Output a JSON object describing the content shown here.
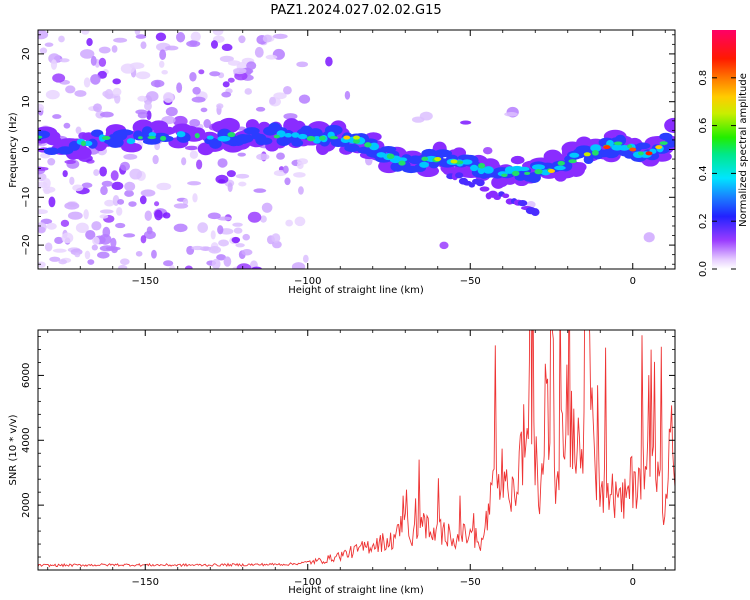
{
  "title": "PAZ1.2024.027.02.02.G15",
  "chart_data": [
    {
      "type": "heatmap",
      "xlabel": "Height of straight line (km)",
      "ylabel": "Frequency (Hz)",
      "xlim": [
        -183,
        13
      ],
      "ylim": [
        -25,
        25
      ],
      "xticks": [
        -150,
        -100,
        -50,
        0
      ],
      "yticks": [
        -20,
        -10,
        0,
        10,
        20
      ],
      "colorbar": {
        "label": "Normalized spectral amplitude",
        "range": [
          0,
          1
        ],
        "ticks": [
          0.0,
          0.2,
          0.4,
          0.6,
          0.8
        ],
        "colormap": "rainbow: white-lavender → purple → blue → cyan → green → yellow → orange → red → magenta"
      },
      "band_center": [
        {
          "x": -180,
          "y": 0.5
        },
        {
          "x": -160,
          "y": 2.5
        },
        {
          "x": -130,
          "y": 2.5
        },
        {
          "x": -110,
          "y": 3
        },
        {
          "x": -90,
          "y": 2.5
        },
        {
          "x": -80,
          "y": 0.5
        },
        {
          "x": -70,
          "y": -3
        },
        {
          "x": -60,
          "y": -2
        },
        {
          "x": -50,
          "y": -3
        },
        {
          "x": -40,
          "y": -5
        },
        {
          "x": -25,
          "y": -4
        },
        {
          "x": -15,
          "y": -1
        },
        {
          "x": -5,
          "y": 1
        },
        {
          "x": 5,
          "y": -1
        },
        {
          "x": 13,
          "y": 3
        }
      ]
    },
    {
      "type": "line",
      "xlabel": "Height of straight line (km)",
      "ylabel": "SNR (10 * v/v)",
      "xlim": [
        -183,
        13
      ],
      "ylim": [
        0,
        7400
      ],
      "xticks": [
        -150,
        -100,
        -50,
        0
      ],
      "yticks": [
        2000,
        4000,
        6000
      ],
      "series": [
        {
          "color": "#ee3333",
          "values": [
            {
              "x": -183,
              "y": 140
            },
            {
              "x": -170,
              "y": 150
            },
            {
              "x": -160,
              "y": 160
            },
            {
              "x": -140,
              "y": 150
            },
            {
              "x": -120,
              "y": 160
            },
            {
              "x": -105,
              "y": 180
            },
            {
              "x": -95,
              "y": 300
            },
            {
              "x": -90,
              "y": 450
            },
            {
              "x": -85,
              "y": 600
            },
            {
              "x": -80,
              "y": 800
            },
            {
              "x": -75,
              "y": 900
            },
            {
              "x": -72,
              "y": 1100
            },
            {
              "x": -70,
              "y": 2200
            },
            {
              "x": -68,
              "y": 900
            },
            {
              "x": -65,
              "y": 1700
            },
            {
              "x": -62,
              "y": 1000
            },
            {
              "x": -60,
              "y": 1200
            },
            {
              "x": -55,
              "y": 1000
            },
            {
              "x": -50,
              "y": 1100
            },
            {
              "x": -47,
              "y": 600
            },
            {
              "x": -45,
              "y": 1500
            },
            {
              "x": -41,
              "y": 3200
            },
            {
              "x": -38,
              "y": 1700
            },
            {
              "x": -35,
              "y": 3200
            },
            {
              "x": -31,
              "y": 5200
            },
            {
              "x": -29,
              "y": 2000
            },
            {
              "x": -26,
              "y": 4900
            },
            {
              "x": -24,
              "y": 3000
            },
            {
              "x": -20,
              "y": 4900
            },
            {
              "x": -16,
              "y": 3800
            },
            {
              "x": -12.5,
              "y": 7300
            },
            {
              "x": -11,
              "y": 2800
            },
            {
              "x": -7,
              "y": 2400
            },
            {
              "x": -3,
              "y": 2000
            },
            {
              "x": 0,
              "y": 2800
            },
            {
              "x": 5,
              "y": 3200
            },
            {
              "x": 8,
              "y": 3800
            },
            {
              "x": 10,
              "y": 1400
            },
            {
              "x": 11.5,
              "y": 4500
            },
            {
              "x": 13,
              "y": 2500
            }
          ]
        }
      ]
    }
  ]
}
